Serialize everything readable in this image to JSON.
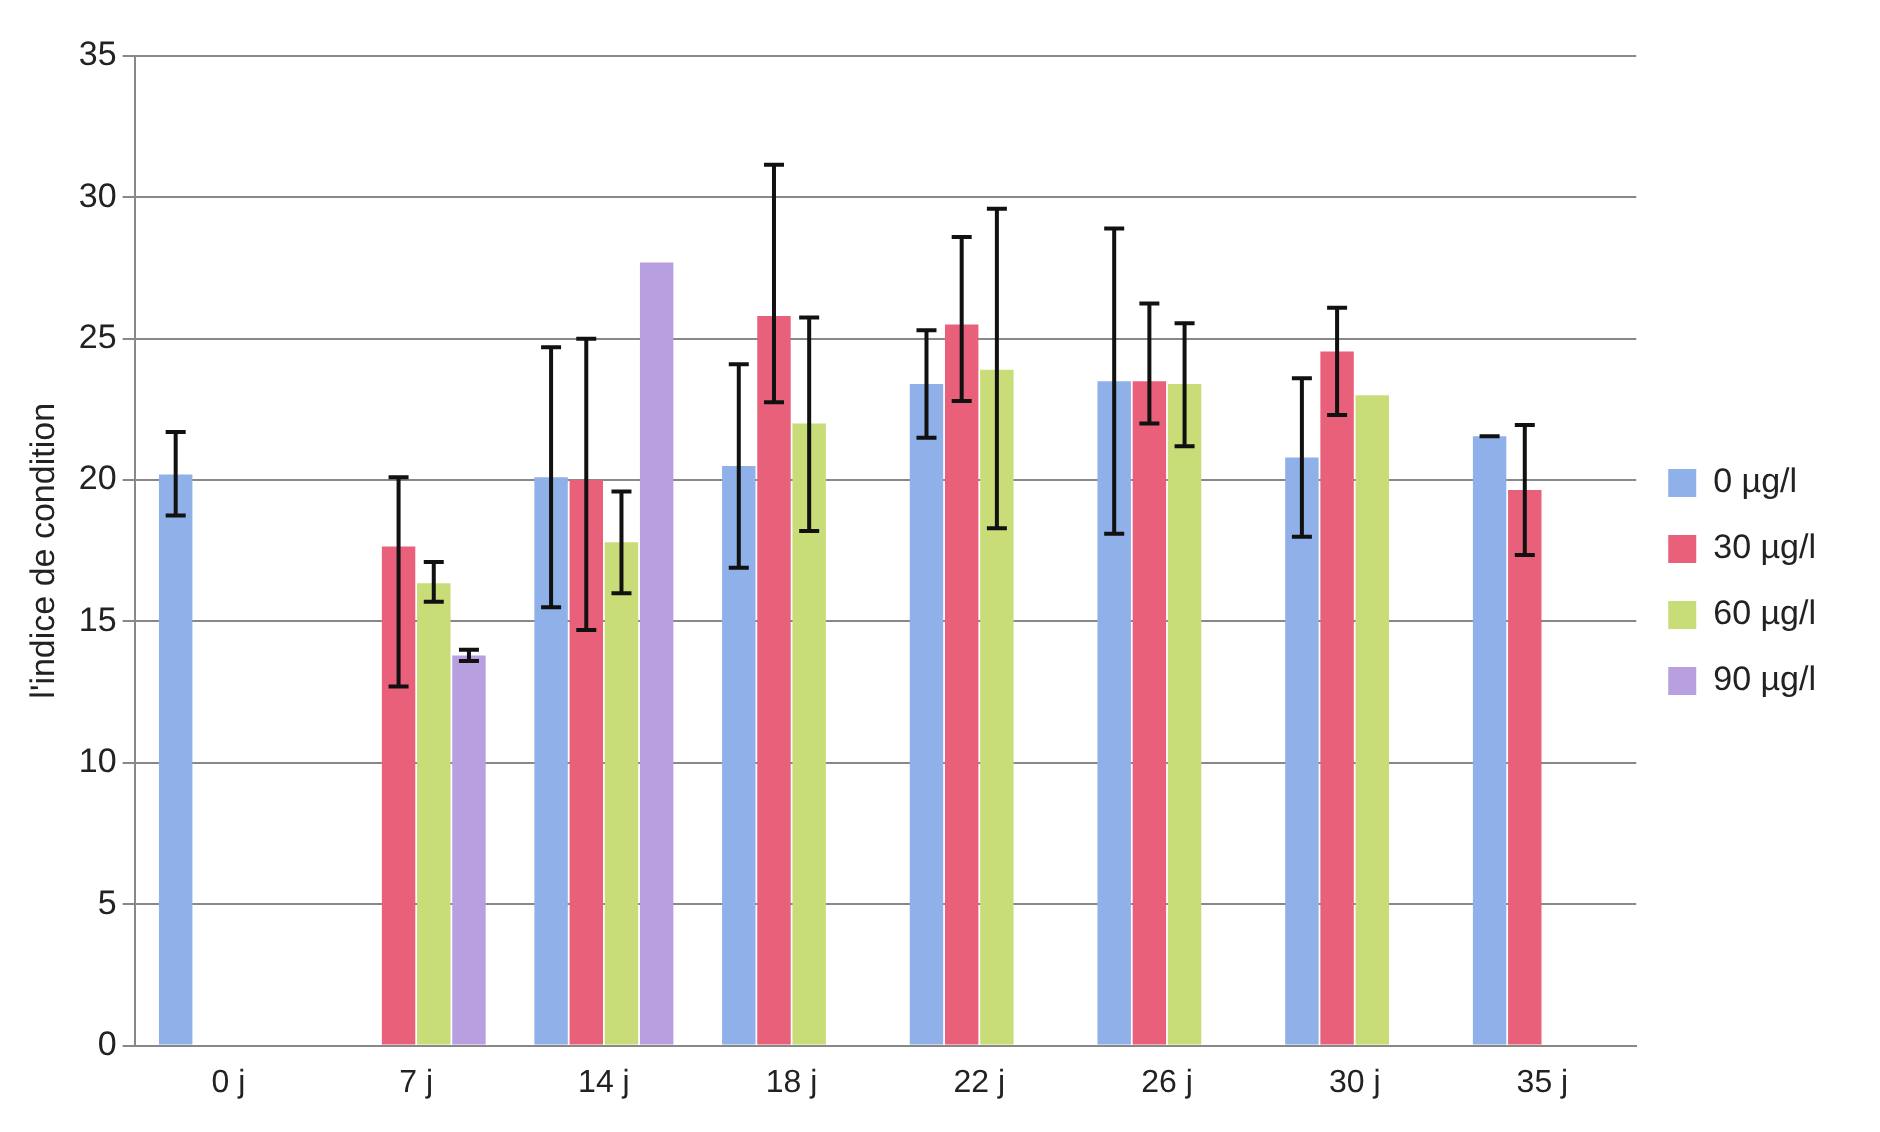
{
  "chart_data": {
    "type": "bar",
    "ylabel": "l'indice de condition",
    "categories": [
      "0 j",
      "7 j",
      "14 j",
      "18 j",
      "22 j",
      "26 j",
      "30 j",
      "35 j"
    ],
    "series": [
      {
        "name": "0 µg/l",
        "color": "#8fb0e8",
        "values": [
          20.2,
          null,
          20.1,
          20.5,
          23.4,
          23.5,
          20.8,
          21.55
        ],
        "errors": [
          [
            18.75,
            21.7
          ],
          null,
          [
            15.5,
            24.7
          ],
          [
            16.9,
            24.1
          ],
          [
            21.5,
            25.3
          ],
          [
            18.1,
            28.9
          ],
          [
            18.0,
            23.6
          ],
          0
        ]
      },
      {
        "name": "30 µg/l",
        "color": "#e8607a",
        "values": [
          null,
          17.65,
          20.0,
          25.8,
          25.5,
          23.5,
          24.55,
          19.65
        ],
        "errors": [
          null,
          [
            12.7,
            20.1
          ],
          [
            14.7,
            25.0
          ],
          [
            22.75,
            31.15
          ],
          [
            22.8,
            28.6
          ],
          [
            22.0,
            26.25
          ],
          [
            22.3,
            26.1
          ],
          [
            17.35,
            21.95
          ]
        ]
      },
      {
        "name": "60 µg/l",
        "color": "#c8dc78",
        "values": [
          null,
          16.35,
          17.8,
          22.0,
          23.9,
          23.4,
          23.0,
          null
        ],
        "errors": [
          null,
          [
            15.7,
            17.1
          ],
          [
            16.0,
            19.6
          ],
          [
            18.2,
            25.75
          ],
          [
            18.3,
            29.6
          ],
          [
            21.2,
            25.55
          ],
          null,
          null
        ]
      },
      {
        "name": "90 µg/l",
        "color": "#b8a0e0",
        "values": [
          null,
          13.8,
          27.7,
          null,
          null,
          null,
          null,
          null
        ],
        "errors": [
          null,
          [
            13.6,
            14.0
          ],
          null,
          null,
          null,
          null,
          null,
          null
        ]
      }
    ],
    "ylim": [
      0,
      35
    ],
    "yticks": [
      0,
      5,
      10,
      15,
      20,
      25,
      30,
      35
    ],
    "grid": "y",
    "legend": "right"
  }
}
